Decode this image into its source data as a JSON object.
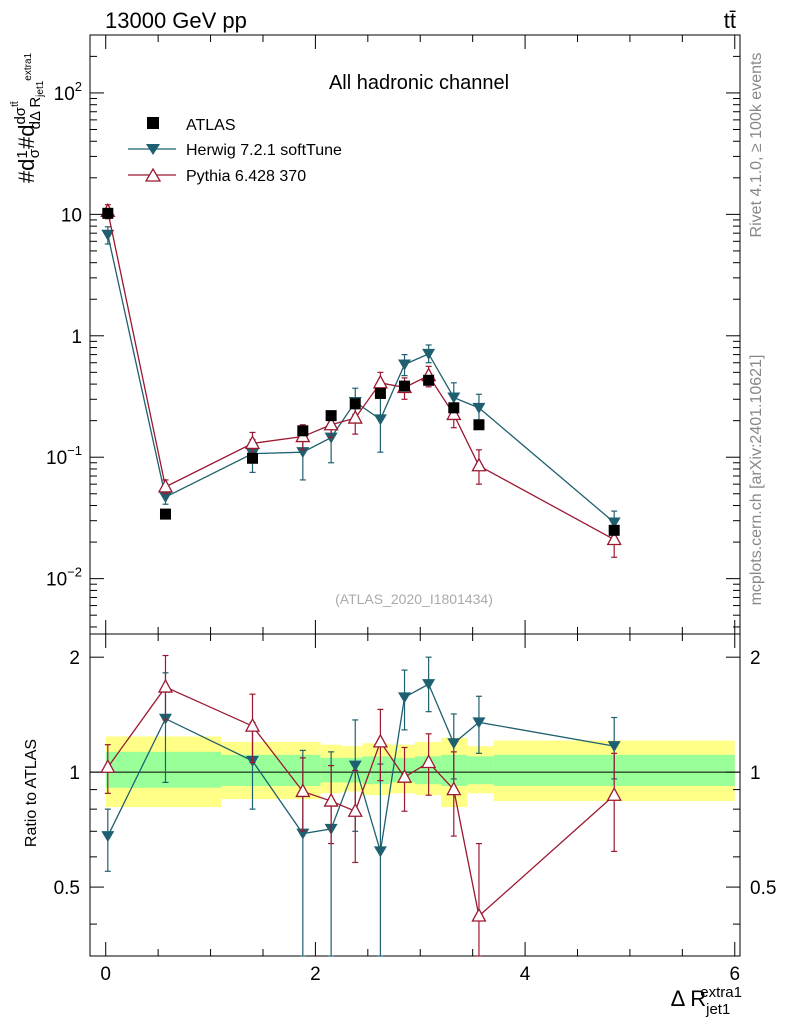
{
  "header": {
    "process": "13000 GeV pp",
    "final_state": "tt̄"
  },
  "side_labels": {
    "rivet": "Rivet 4.1.0, ≥ 100k events",
    "mcplots": "mcplots.cern.ch [arXiv:2401.10621]"
  },
  "colors": {
    "atlas": "#000000",
    "herwig": "#1f6070",
    "pythia": "#9b1830",
    "band_outer": "#ffff88",
    "band_inner": "#99ff99"
  },
  "chart_data": {
    "type": "line",
    "title": "All hadronic channel",
    "watermark": "(ATLAS_2020_I1801434)",
    "xlabel": "Δ R",
    "xlabel_sup": "extra1",
    "xlabel_sub": "jet1",
    "ylabel": "#d1/σ#d dσ^{tt̄}/dΔ R^{extra1}_{jet1}",
    "ratio_ylabel": "Ratio to ATLAS",
    "xlim": [
      -0.15,
      6.05
    ],
    "ylim": [
      0.0035,
      300
    ],
    "ratio_ylim": [
      0.33,
      2.3
    ],
    "xticks": [
      0,
      2,
      4,
      6
    ],
    "xtick_labels": [
      "0",
      "2",
      "4",
      "6"
    ],
    "yticks_main": [
      {
        "value": 0.01,
        "base": "10",
        "exp": "−2"
      },
      {
        "value": 0.1,
        "base": "10",
        "exp": "−1"
      },
      {
        "value": 1,
        "base": "1",
        "exp": ""
      },
      {
        "value": 10,
        "base": "10",
        "exp": ""
      },
      {
        "value": 100,
        "base": "10",
        "exp": "2"
      }
    ],
    "yticks_ratio": [
      {
        "value": 0.5,
        "label": "0.5"
      },
      {
        "value": 1,
        "label": "1"
      },
      {
        "value": 2,
        "label": "2"
      }
    ],
    "bins": [
      [
        0,
        0.3
      ],
      [
        0.3,
        1.1
      ],
      [
        1.1,
        1.7
      ],
      [
        1.7,
        2.05
      ],
      [
        2.05,
        2.25
      ],
      [
        2.25,
        2.45
      ],
      [
        2.45,
        2.7
      ],
      [
        2.7,
        2.95
      ],
      [
        2.95,
        3.2
      ],
      [
        3.2,
        3.45
      ],
      [
        3.45,
        3.7
      ],
      [
        3.7,
        6.0
      ]
    ],
    "band_outer": [
      [
        0.81,
        1.24
      ],
      [
        0.81,
        1.24
      ],
      [
        0.85,
        1.2
      ],
      [
        0.85,
        1.2
      ],
      [
        0.88,
        1.18
      ],
      [
        0.89,
        1.17
      ],
      [
        0.87,
        1.19
      ],
      [
        0.88,
        1.18
      ],
      [
        0.87,
        1.2
      ],
      [
        0.81,
        1.23
      ],
      [
        0.88,
        1.17
      ],
      [
        0.84,
        1.21
      ]
    ],
    "band_inner": [
      [
        0.91,
        1.13
      ],
      [
        0.91,
        1.13
      ],
      [
        0.92,
        1.11
      ],
      [
        0.92,
        1.11
      ],
      [
        0.94,
        1.09
      ],
      [
        0.94,
        1.09
      ],
      [
        0.93,
        1.1
      ],
      [
        0.94,
        1.09
      ],
      [
        0.93,
        1.1
      ],
      [
        0.92,
        1.11
      ],
      [
        0.93,
        1.1
      ],
      [
        0.92,
        1.11
      ]
    ],
    "series": [
      {
        "name": "ATLAS",
        "marker": "square",
        "x": [
          0.02,
          0.57,
          1.4,
          1.88,
          2.15,
          2.38,
          2.62,
          2.85,
          3.08,
          3.32,
          3.56,
          4.85
        ],
        "values": [
          10.2,
          0.034,
          0.098,
          0.165,
          0.22,
          0.275,
          0.335,
          0.385,
          0.43,
          0.255,
          0.185,
          0.025
        ]
      },
      {
        "name": "Herwig 7.2.1 softTune",
        "marker": "triangle-down",
        "x": [
          0.02,
          0.57,
          1.4,
          1.88,
          2.15,
          2.38,
          2.62,
          2.85,
          3.08,
          3.32,
          3.56,
          4.85
        ],
        "values": [
          6.8,
          0.047,
          0.107,
          0.11,
          0.145,
          0.285,
          0.205,
          0.58,
          0.71,
          0.31,
          0.255,
          0.029
        ],
        "err_low": [
          5.7,
          0.041,
          0.075,
          0.065,
          0.09,
          0.225,
          0.11,
          0.47,
          0.6,
          0.24,
          0.2,
          0.023
        ],
        "err_high": [
          7.9,
          0.053,
          0.14,
          0.16,
          0.2,
          0.37,
          0.31,
          0.7,
          0.84,
          0.41,
          0.33,
          0.036
        ],
        "ratio": [
          0.68,
          1.38,
          1.07,
          0.69,
          0.71,
          1.04,
          0.62,
          1.57,
          1.7,
          1.19,
          1.35,
          1.17
        ],
        "ratio_low": [
          0.55,
          0.94,
          0.8,
          0.28,
          0.3,
          0.7,
          0.2,
          1.29,
          1.44,
          0.96,
          1.12,
          0.96
        ],
        "ratio_high": [
          0.8,
          1.82,
          1.35,
          1.14,
          1.13,
          1.37,
          1.05,
          1.85,
          2.0,
          1.42,
          1.58,
          1.39
        ]
      },
      {
        "name": "Pythia 6.428 370",
        "marker": "triangle-up-open",
        "x": [
          0.02,
          0.57,
          1.4,
          1.88,
          2.15,
          2.38,
          2.62,
          2.85,
          3.08,
          3.32,
          3.56,
          4.85
        ],
        "values": [
          10.6,
          0.057,
          0.13,
          0.148,
          0.185,
          0.21,
          0.41,
          0.375,
          0.47,
          0.225,
          0.085,
          0.021
        ],
        "err_low": [
          9.2,
          0.05,
          0.105,
          0.115,
          0.145,
          0.155,
          0.32,
          0.3,
          0.38,
          0.175,
          0.06,
          0.015
        ],
        "err_high": [
          12.0,
          0.065,
          0.16,
          0.185,
          0.23,
          0.27,
          0.5,
          0.45,
          0.56,
          0.28,
          0.115,
          0.027
        ],
        "ratio": [
          1.03,
          1.67,
          1.32,
          0.89,
          0.84,
          0.79,
          1.2,
          0.97,
          1.06,
          0.9,
          0.42,
          0.87
        ],
        "ratio_low": [
          0.88,
          1.37,
          1.06,
          0.7,
          0.65,
          0.58,
          0.95,
          0.79,
          0.87,
          0.68,
          0.3,
          0.62
        ],
        "ratio_high": [
          1.18,
          2.02,
          1.6,
          1.09,
          1.04,
          1.01,
          1.46,
          1.16,
          1.26,
          1.13,
          0.65,
          1.12
        ]
      }
    ]
  }
}
